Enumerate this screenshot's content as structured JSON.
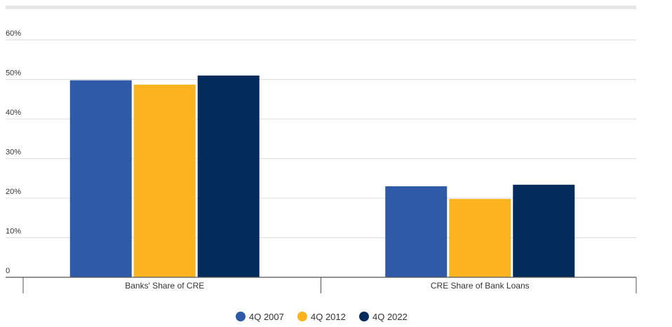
{
  "chart_data": {
    "type": "bar",
    "categories": [
      "Banks' Share of CRE",
      "CRE Share of Bank Loans"
    ],
    "series": [
      {
        "name": "4Q 2007",
        "color": "#2e5aa8",
        "values": [
          49.8,
          23.0
        ]
      },
      {
        "name": "4Q 2012",
        "color": "#fbb41f",
        "values": [
          48.7,
          19.8
        ]
      },
      {
        "name": "4Q 2022",
        "color": "#032b5b",
        "values": [
          51.0,
          23.4
        ]
      }
    ],
    "y_ticks": [
      "0",
      "10%",
      "20%",
      "30%",
      "40%",
      "50%",
      "60%"
    ],
    "ylim": [
      0,
      60
    ],
    "grid": true,
    "legend_position": "bottom-center"
  }
}
